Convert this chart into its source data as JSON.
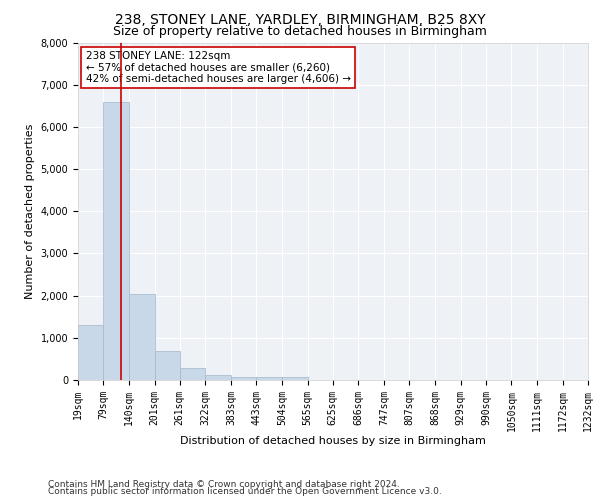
{
  "title": "238, STONEY LANE, YARDLEY, BIRMINGHAM, B25 8XY",
  "subtitle": "Size of property relative to detached houses in Birmingham",
  "xlabel": "Distribution of detached houses by size in Birmingham",
  "ylabel": "Number of detached properties",
  "bin_labels": [
    "19sqm",
    "79sqm",
    "140sqm",
    "201sqm",
    "261sqm",
    "322sqm",
    "383sqm",
    "443sqm",
    "504sqm",
    "565sqm",
    "625sqm",
    "686sqm",
    "747sqm",
    "807sqm",
    "868sqm",
    "929sqm",
    "990sqm",
    "1050sqm",
    "1111sqm",
    "1172sqm",
    "1232sqm"
  ],
  "bin_edges": [
    19,
    79,
    140,
    201,
    261,
    322,
    383,
    443,
    504,
    565,
    625,
    686,
    747,
    807,
    868,
    929,
    990,
    1050,
    1111,
    1172,
    1232
  ],
  "bar_heights": [
    1300,
    6600,
    2050,
    680,
    280,
    120,
    70,
    70,
    70,
    0,
    0,
    0,
    0,
    0,
    0,
    0,
    0,
    0,
    0,
    0
  ],
  "bar_color": "#c8d8e8",
  "bar_edgecolor": "#a0b8cc",
  "property_size": 122,
  "red_line_color": "#cc0000",
  "ylim": [
    0,
    8000
  ],
  "yticks": [
    0,
    1000,
    2000,
    3000,
    4000,
    5000,
    6000,
    7000,
    8000
  ],
  "annotation_text": "238 STONEY LANE: 122sqm\n← 57% of detached houses are smaller (6,260)\n42% of semi-detached houses are larger (4,606) →",
  "annotation_box_color": "#ffffff",
  "annotation_box_edgecolor": "#cc0000",
  "background_color": "#eef2f7",
  "grid_color": "#ffffff",
  "footer_line1": "Contains HM Land Registry data © Crown copyright and database right 2024.",
  "footer_line2": "Contains public sector information licensed under the Open Government Licence v3.0.",
  "title_fontsize": 10,
  "subtitle_fontsize": 9,
  "axis_label_fontsize": 8,
  "tick_fontsize": 7,
  "annotation_fontsize": 7.5,
  "footer_fontsize": 6.5
}
